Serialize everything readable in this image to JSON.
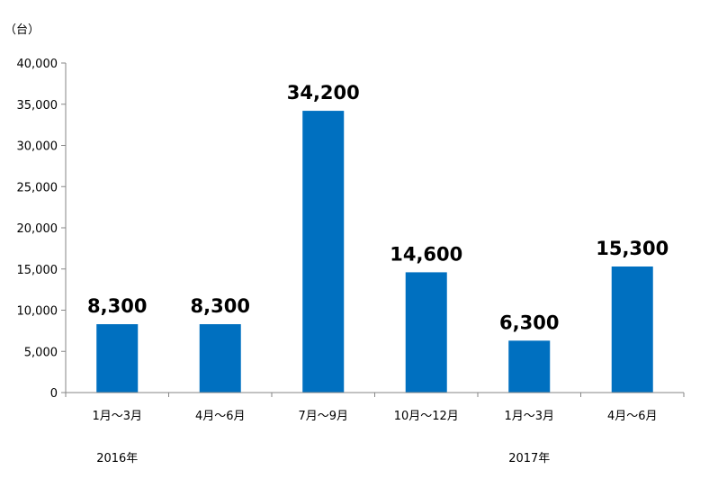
{
  "chart_data": {
    "type": "bar",
    "ylabel": "（台）",
    "ylim": [
      0,
      40000
    ],
    "yticks": [
      0,
      5000,
      10000,
      15000,
      20000,
      25000,
      30000,
      35000,
      40000
    ],
    "ytick_labels": [
      "0",
      "5,000",
      "10,000",
      "15,000",
      "20,000",
      "25,000",
      "30,000",
      "35,000",
      "40,000"
    ],
    "categories": [
      "1月～3月",
      "4月～6月",
      "7月～9月",
      "10月～12月",
      "1月～3月",
      "4月～6月"
    ],
    "values": [
      8300,
      8300,
      34200,
      14600,
      6300,
      15300
    ],
    "data_labels": [
      "8,300",
      "8,300",
      "34,200",
      "14,600",
      "6,300",
      "15,300"
    ],
    "year_groups": [
      {
        "label": "2016年",
        "start_index": 0
      },
      {
        "label": "2017年",
        "start_index": 4
      }
    ],
    "bar_color": "#0070C0",
    "grid": false
  }
}
